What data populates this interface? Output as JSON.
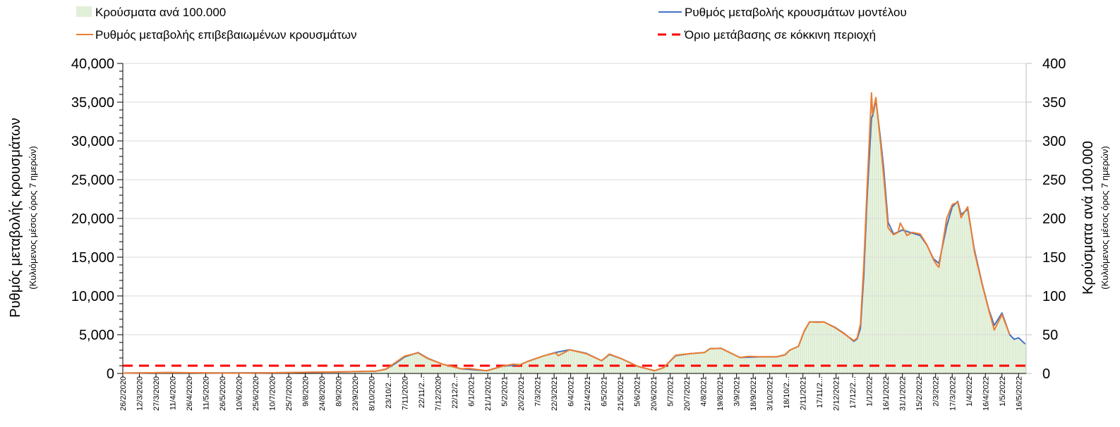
{
  "chart_data": {
    "type": "bar+line",
    "x_unit": "days since 26/2/2020",
    "x_range": [
      -2,
      818
    ],
    "x_tick_labels": [
      "26/2/2020",
      "12/3/2020",
      "27/3/2020",
      "11/4/2020",
      "26/4/2020",
      "11/5/2020",
      "26/5/2020",
      "10/6/2020",
      "25/6/2020",
      "10/7/2020",
      "25/7/2020",
      "9/8/2020",
      "24/8/2020",
      "8/9/2020",
      "23/9/2020",
      "8/10/2020",
      "23/10/2...",
      "7/11/2020",
      "22/11/2...",
      "7/12/2020",
      "22/12/2...",
      "6/1/2021",
      "21/1/2021",
      "5/2/2021",
      "20/2/2021",
      "7/3/2021",
      "22/3/2021",
      "6/4/2021",
      "21/4/2021",
      "6/5/2021",
      "21/5/2021",
      "5/6/2021",
      "20/6/2021",
      "5/7/2021",
      "20/7/2021",
      "4/8/2021",
      "19/8/2021",
      "3/9/2021",
      "18/9/2021",
      "3/10/2021",
      "18/10/2...",
      "2/11/2021",
      "17/11/2...",
      "2/12/2021",
      "17/12/2...",
      "1/1/2022",
      "16/1/2022",
      "31/1/2022",
      "15/2/2022",
      "2/3/2022",
      "17/3/2022",
      "1/4/2022",
      "16/4/2022",
      "1/5/2022",
      "16/5/2022"
    ],
    "x_tick_step_days": 15,
    "y_left": {
      "title": "Ρυθμός μεταβολής κρουσμάτων",
      "subtitle": "(Κυλιόμενος μέσος όρος 7 ημερών)",
      "range": [
        0,
        40000
      ],
      "ticks": [
        "0",
        "5,000",
        "10,000",
        "15,000",
        "20,000",
        "25,000",
        "30,000",
        "35,000",
        "40,000"
      ]
    },
    "y_right": {
      "title": "Κρούσματα ανά 100.000",
      "subtitle": "(Κυλιόμενος μέσος όρος 7 ημερών)",
      "range": [
        0,
        400
      ],
      "ticks": [
        "0",
        "50",
        "100",
        "150",
        "200",
        "250",
        "300",
        "350",
        "400"
      ]
    },
    "grid": true,
    "legend_position": "top",
    "series": [
      {
        "name": "Κρούσματα ανά 100.000",
        "type": "bar",
        "axis": "right",
        "color": "#e2efd9",
        "points": [
          [
            0,
            0.5
          ],
          [
            40,
            1.2
          ],
          [
            80,
            0.6
          ],
          [
            144,
            1
          ],
          [
            197,
            2
          ],
          [
            229,
            3
          ],
          [
            246,
            13.5
          ],
          [
            255,
            22.5
          ],
          [
            267,
            26.5
          ],
          [
            276,
            19
          ],
          [
            289,
            12
          ],
          [
            306,
            6
          ],
          [
            329,
            3.5
          ],
          [
            344,
            9.5
          ],
          [
            366,
            15.5
          ],
          [
            380,
            22.5
          ],
          [
            391,
            26.5
          ],
          [
            404,
            30.5
          ],
          [
            419,
            25.5
          ],
          [
            433,
            16.5
          ],
          [
            440,
            25
          ],
          [
            451,
            19
          ],
          [
            466,
            9
          ],
          [
            481,
            3.5
          ],
          [
            489,
            7.5
          ],
          [
            500,
            23.5
          ],
          [
            513,
            25.5
          ],
          [
            526,
            27
          ],
          [
            531,
            32
          ],
          [
            541,
            32.5
          ],
          [
            558,
            20.5
          ],
          [
            577,
            21.5
          ],
          [
            591,
            21.5
          ],
          [
            603,
            30
          ],
          [
            611,
            35
          ],
          [
            616,
            54.5
          ],
          [
            621,
            66.5
          ],
          [
            634,
            66.5
          ],
          [
            644,
            59
          ],
          [
            652,
            51.5
          ],
          [
            661,
            42.5
          ],
          [
            664,
            45.5
          ],
          [
            667,
            63.5
          ],
          [
            670,
            139
          ],
          [
            673,
            239
          ],
          [
            677,
            340
          ],
          [
            681,
            353
          ],
          [
            685,
            300
          ],
          [
            688,
            255
          ],
          [
            692,
            188
          ],
          [
            697,
            179
          ],
          [
            705,
            189
          ],
          [
            714,
            182
          ],
          [
            721,
            180
          ],
          [
            727,
            166.5
          ],
          [
            733,
            147
          ],
          [
            738,
            140
          ],
          [
            745,
            200
          ],
          [
            750,
            218
          ],
          [
            755,
            222
          ],
          [
            758,
            201
          ],
          [
            764,
            215
          ],
          [
            770,
            157.5
          ],
          [
            777,
            115
          ],
          [
            783,
            82
          ],
          [
            788,
            56
          ],
          [
            795,
            77
          ],
          [
            802,
            50
          ],
          [
            806,
            44
          ],
          [
            810,
            46
          ],
          [
            816,
            38
          ]
        ]
      },
      {
        "name": "Ρυθμός μεταβολής κρουσμάτων μοντέλου",
        "type": "line",
        "axis": "left",
        "color": "#4472c4",
        "points": [
          [
            0,
            50
          ],
          [
            40,
            120
          ],
          [
            80,
            60
          ],
          [
            144,
            100
          ],
          [
            197,
            200
          ],
          [
            229,
            300
          ],
          [
            238,
            550
          ],
          [
            246,
            1250
          ],
          [
            255,
            2150
          ],
          [
            267,
            2700
          ],
          [
            276,
            1950
          ],
          [
            289,
            1200
          ],
          [
            306,
            600
          ],
          [
            329,
            350
          ],
          [
            344,
            950
          ],
          [
            359,
            1100
          ],
          [
            366,
            1550
          ],
          [
            380,
            2250
          ],
          [
            391,
            2700
          ],
          [
            404,
            3050
          ],
          [
            419,
            2600
          ],
          [
            433,
            1650
          ],
          [
            440,
            2450
          ],
          [
            451,
            1900
          ],
          [
            466,
            900
          ],
          [
            481,
            350
          ],
          [
            489,
            750
          ],
          [
            500,
            2300
          ],
          [
            513,
            2550
          ],
          [
            526,
            2700
          ],
          [
            531,
            3200
          ],
          [
            541,
            3250
          ],
          [
            558,
            2050
          ],
          [
            577,
            2150
          ],
          [
            591,
            2150
          ],
          [
            599,
            2400
          ],
          [
            603,
            3000
          ],
          [
            611,
            3500
          ],
          [
            616,
            5400
          ],
          [
            621,
            6650
          ],
          [
            634,
            6650
          ],
          [
            644,
            5950
          ],
          [
            652,
            5200
          ],
          [
            661,
            4150
          ],
          [
            664,
            4450
          ],
          [
            667,
            5800
          ],
          [
            670,
            12500
          ],
          [
            673,
            22500
          ],
          [
            677,
            33000
          ],
          [
            678,
            33200
          ],
          [
            681,
            35300
          ],
          [
            685,
            30500
          ],
          [
            688,
            26500
          ],
          [
            692,
            19500
          ],
          [
            697,
            18000
          ],
          [
            705,
            18500
          ],
          [
            714,
            18100
          ],
          [
            721,
            17800
          ],
          [
            727,
            16600
          ],
          [
            733,
            14800
          ],
          [
            738,
            14200
          ],
          [
            745,
            19000
          ],
          [
            750,
            21500
          ],
          [
            755,
            22200
          ],
          [
            758,
            20500
          ],
          [
            764,
            21200
          ],
          [
            770,
            16000
          ],
          [
            777,
            11600
          ],
          [
            783,
            8300
          ],
          [
            788,
            6200
          ],
          [
            795,
            7800
          ],
          [
            802,
            5000
          ],
          [
            806,
            4400
          ],
          [
            810,
            4600
          ],
          [
            816,
            3800
          ]
        ]
      },
      {
        "name": "Ρυθμός μεταβολής επιβεβαιωμένων κρουσμάτων",
        "type": "line",
        "axis": "left",
        "color": "#ed7d31",
        "points": [
          [
            0,
            50
          ],
          [
            20,
            80
          ],
          [
            40,
            120
          ],
          [
            60,
            90
          ],
          [
            80,
            60
          ],
          [
            100,
            40
          ],
          [
            120,
            60
          ],
          [
            144,
            100
          ],
          [
            165,
            150
          ],
          [
            197,
            200
          ],
          [
            229,
            300
          ],
          [
            238,
            550
          ],
          [
            246,
            1350
          ],
          [
            255,
            2250
          ],
          [
            267,
            2650
          ],
          [
            276,
            1900
          ],
          [
            289,
            1200
          ],
          [
            306,
            600
          ],
          [
            313,
            650
          ],
          [
            329,
            350
          ],
          [
            344,
            950
          ],
          [
            353,
            1200
          ],
          [
            359,
            1100
          ],
          [
            366,
            1550
          ],
          [
            380,
            2250
          ],
          [
            391,
            2650
          ],
          [
            394,
            2300
          ],
          [
            404,
            3050
          ],
          [
            419,
            2550
          ],
          [
            433,
            1650
          ],
          [
            440,
            2500
          ],
          [
            451,
            1900
          ],
          [
            466,
            900
          ],
          [
            481,
            350
          ],
          [
            489,
            750
          ],
          [
            500,
            2350
          ],
          [
            513,
            2550
          ],
          [
            526,
            2700
          ],
          [
            531,
            3200
          ],
          [
            541,
            3250
          ],
          [
            558,
            2050
          ],
          [
            566,
            2200
          ],
          [
            577,
            2150
          ],
          [
            591,
            2150
          ],
          [
            599,
            2400
          ],
          [
            603,
            3000
          ],
          [
            611,
            3500
          ],
          [
            616,
            5450
          ],
          [
            621,
            6650
          ],
          [
            629,
            6600
          ],
          [
            634,
            6650
          ],
          [
            644,
            5900
          ],
          [
            652,
            5150
          ],
          [
            661,
            4250
          ],
          [
            664,
            4550
          ],
          [
            667,
            6350
          ],
          [
            670,
            13900
          ],
          [
            673,
            23900
          ],
          [
            677,
            36200
          ],
          [
            678,
            33500
          ],
          [
            681,
            35600
          ],
          [
            685,
            30000
          ],
          [
            688,
            25500
          ],
          [
            692,
            18800
          ],
          [
            697,
            17900
          ],
          [
            701,
            18200
          ],
          [
            703,
            19400
          ],
          [
            705,
            18900
          ],
          [
            709,
            17800
          ],
          [
            714,
            18200
          ],
          [
            721,
            18000
          ],
          [
            727,
            16650
          ],
          [
            733,
            14700
          ],
          [
            736,
            14000
          ],
          [
            738,
            13700
          ],
          [
            745,
            20000
          ],
          [
            750,
            21800
          ],
          [
            755,
            22100
          ],
          [
            758,
            20100
          ],
          [
            764,
            21500
          ],
          [
            770,
            15750
          ],
          [
            777,
            11500
          ],
          [
            783,
            8200
          ],
          [
            788,
            5600
          ],
          [
            795,
            7600
          ],
          [
            802,
            5000
          ]
        ]
      },
      {
        "name": "Όριο μετάβασης σε κόκκινη περιοχή",
        "type": "line",
        "style": "dashed",
        "axis": "left",
        "color": "#ff0000",
        "value": 1000
      }
    ]
  }
}
